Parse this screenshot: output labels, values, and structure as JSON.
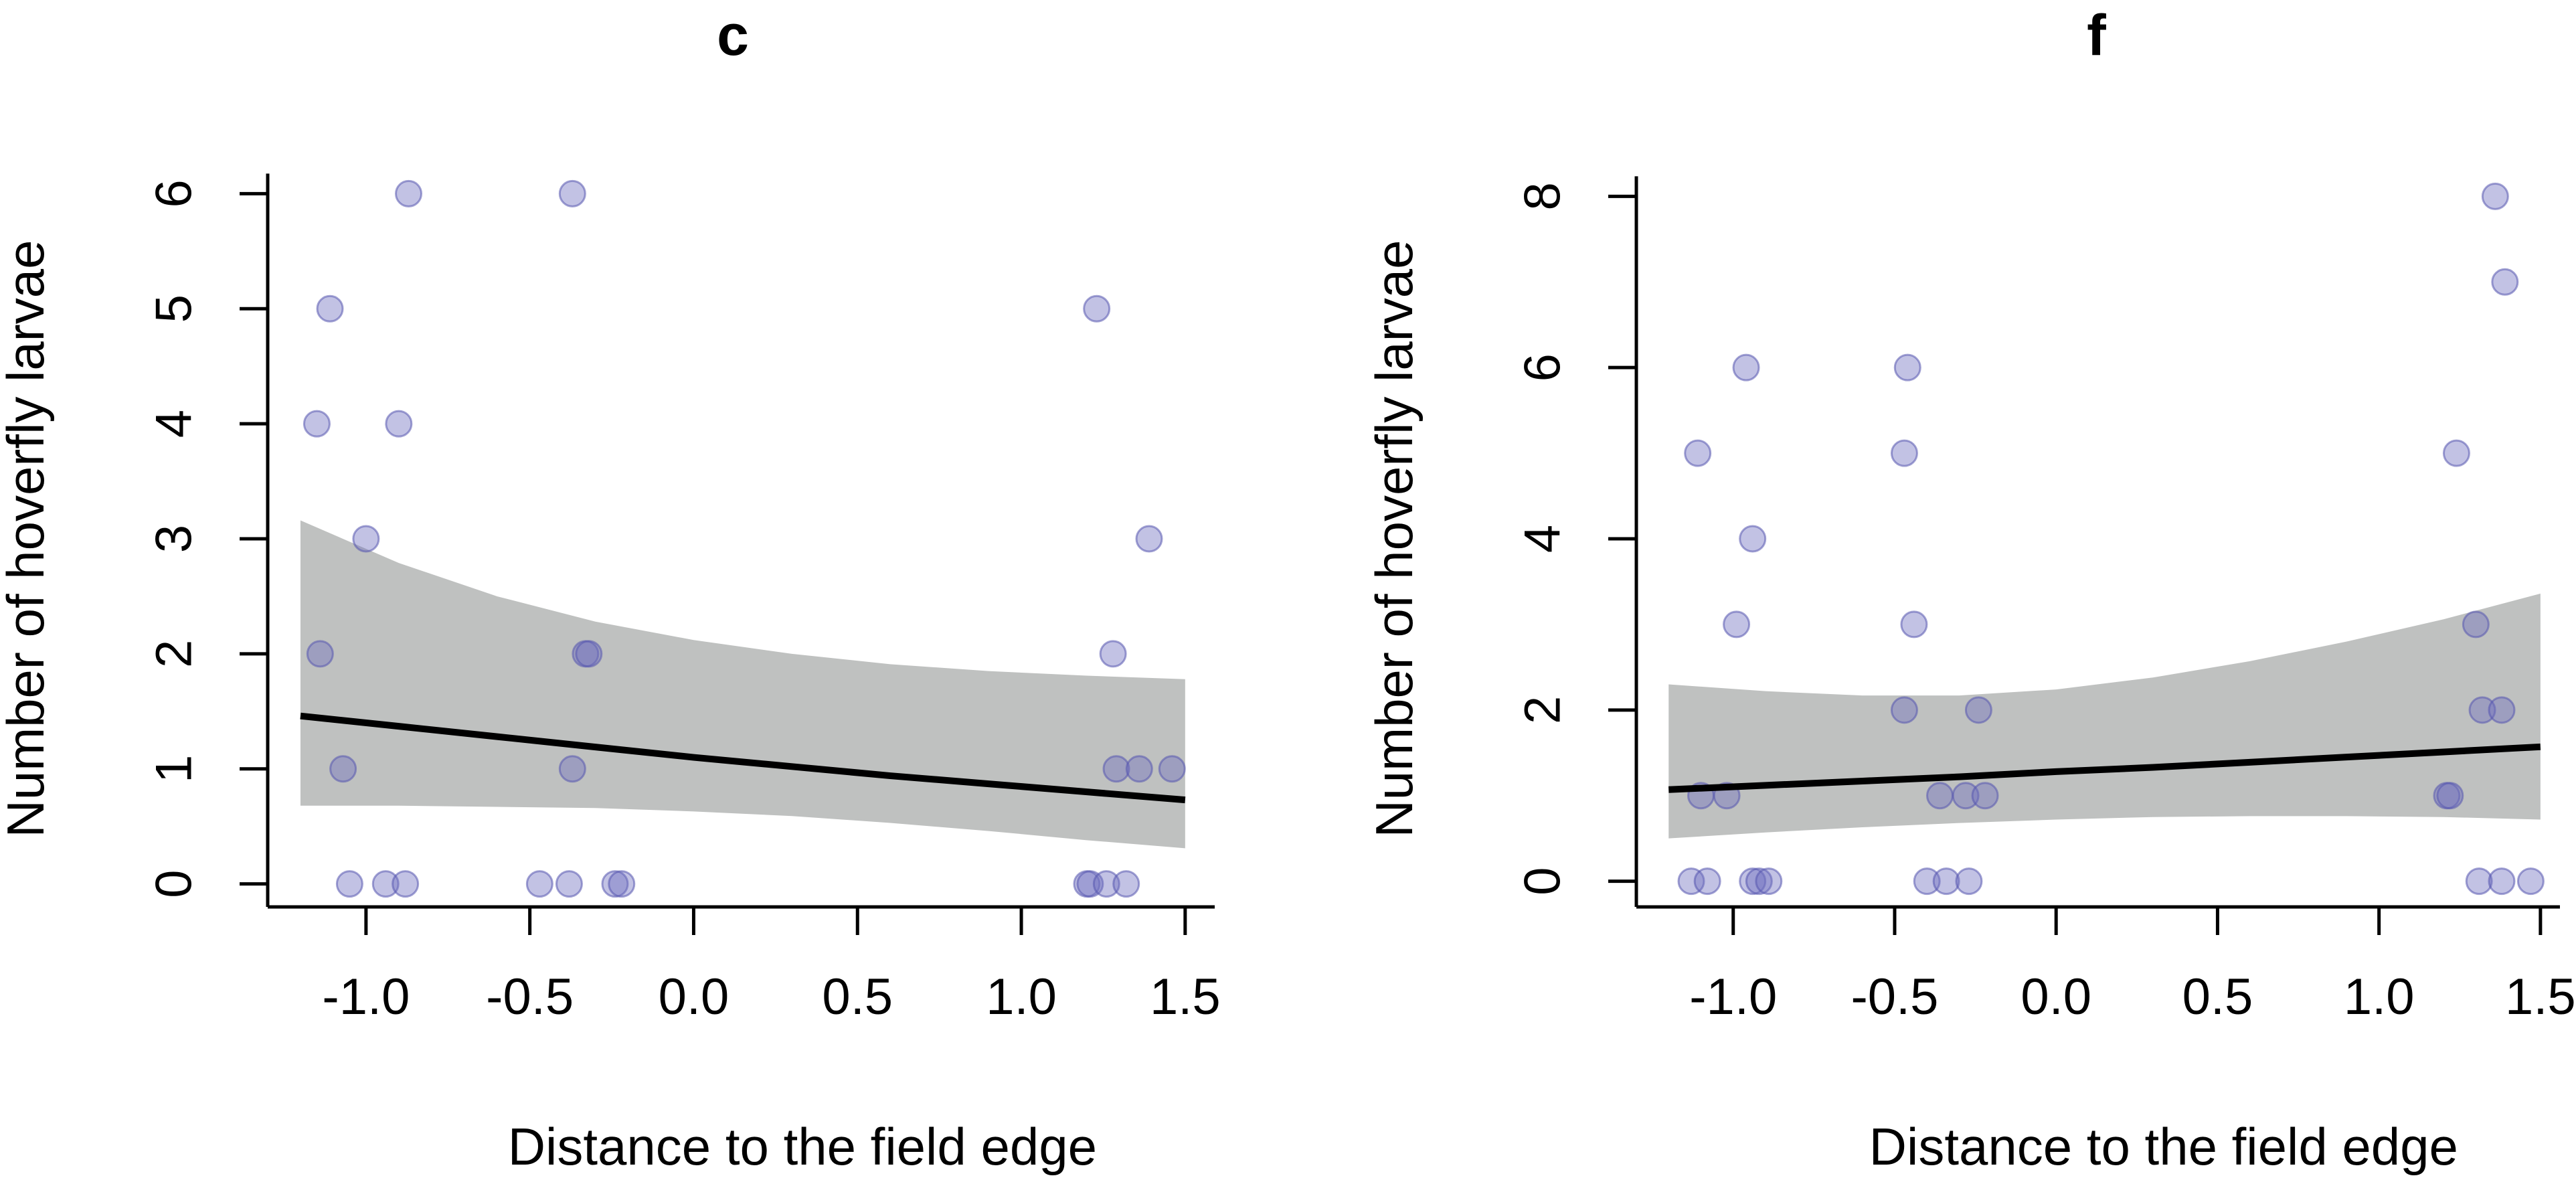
{
  "chart_data": [
    {
      "type": "scatter",
      "title": "c",
      "xlabel": "Distance to the field edge",
      "ylabel": "Number of hoverfly larvae",
      "xlim": [
        -1.3,
        1.58
      ],
      "ylim": [
        -0.2,
        6.2
      ],
      "xticks": [
        -1.0,
        -0.5,
        0.0,
        0.5,
        1.0,
        1.5
      ],
      "xtick_labels": [
        "-1.0",
        "-0.5",
        "0.0",
        "0.5",
        "1.0",
        "1.5"
      ],
      "yticks": [
        0,
        1,
        2,
        3,
        4,
        5,
        6
      ],
      "ytick_labels": [
        "0",
        "1",
        "2",
        "3",
        "4",
        "5",
        "6"
      ],
      "axis_x_range": [
        -1.3,
        1.58
      ],
      "axis_y_range": [
        0,
        6
      ],
      "points": [
        {
          "x": -1.15,
          "y": 4
        },
        {
          "x": -1.11,
          "y": 5
        },
        {
          "x": -1.14,
          "y": 2
        },
        {
          "x": -1.07,
          "y": 1
        },
        {
          "x": -1.0,
          "y": 3
        },
        {
          "x": -1.05,
          "y": 0
        },
        {
          "x": -0.94,
          "y": 0
        },
        {
          "x": -0.88,
          "y": 0
        },
        {
          "x": -0.9,
          "y": 4
        },
        {
          "x": -0.87,
          "y": 6
        },
        {
          "x": -0.47,
          "y": 0
        },
        {
          "x": -0.38,
          "y": 0
        },
        {
          "x": -0.37,
          "y": 1
        },
        {
          "x": -0.37,
          "y": 6
        },
        {
          "x": -0.33,
          "y": 2
        },
        {
          "x": -0.32,
          "y": 2
        },
        {
          "x": -0.24,
          "y": 0
        },
        {
          "x": -0.22,
          "y": 0
        },
        {
          "x": 1.2,
          "y": 0
        },
        {
          "x": 1.21,
          "y": 0
        },
        {
          "x": 1.23,
          "y": 5
        },
        {
          "x": 1.26,
          "y": 0
        },
        {
          "x": 1.32,
          "y": 0
        },
        {
          "x": 1.28,
          "y": 2
        },
        {
          "x": 1.29,
          "y": 1
        },
        {
          "x": 1.36,
          "y": 1
        },
        {
          "x": 1.39,
          "y": 3
        },
        {
          "x": 1.46,
          "y": 1
        }
      ],
      "fit": {
        "x": [
          -1.2,
          -0.9,
          -0.6,
          -0.3,
          0.0,
          0.3,
          0.6,
          0.9,
          1.2,
          1.5
        ],
        "y": [
          1.46,
          1.37,
          1.28,
          1.19,
          1.1,
          1.02,
          0.94,
          0.87,
          0.8,
          0.73
        ],
        "lower": [
          0.68,
          0.68,
          0.67,
          0.66,
          0.63,
          0.59,
          0.53,
          0.46,
          0.38,
          0.31
        ],
        "upper": [
          3.16,
          2.79,
          2.5,
          2.28,
          2.12,
          2.0,
          1.91,
          1.85,
          1.81,
          1.78
        ]
      }
    },
    {
      "type": "scatter",
      "title": "f",
      "xlabel": "Distance to the field edge",
      "ylabel": "Number of hoverfly larvae",
      "xlim": [
        -1.3,
        1.55
      ],
      "ylim": [
        -0.3,
        8.3
      ],
      "xticks": [
        -1.0,
        -0.5,
        0.0,
        0.5,
        1.0,
        1.5
      ],
      "xtick_labels": [
        "-1.0",
        "-0.5",
        "0.0",
        "0.5",
        "1.0",
        "1.5"
      ],
      "yticks": [
        0,
        2,
        4,
        6,
        8
      ],
      "ytick_labels": [
        "0",
        "2",
        "4",
        "6",
        "8"
      ],
      "axis_x_range": [
        -1.3,
        1.55
      ],
      "axis_y_range": [
        0,
        8
      ],
      "points": [
        {
          "x": -1.11,
          "y": 5
        },
        {
          "x": -1.1,
          "y": 1
        },
        {
          "x": -1.13,
          "y": 0
        },
        {
          "x": -1.08,
          "y": 0
        },
        {
          "x": -1.02,
          "y": 1
        },
        {
          "x": -0.99,
          "y": 3
        },
        {
          "x": -0.96,
          "y": 6
        },
        {
          "x": -0.94,
          "y": 4
        },
        {
          "x": -0.94,
          "y": 0
        },
        {
          "x": -0.92,
          "y": 0
        },
        {
          "x": -0.89,
          "y": 0
        },
        {
          "x": -0.47,
          "y": 5
        },
        {
          "x": -0.46,
          "y": 6
        },
        {
          "x": -0.47,
          "y": 2
        },
        {
          "x": -0.44,
          "y": 3
        },
        {
          "x": -0.4,
          "y": 0
        },
        {
          "x": -0.36,
          "y": 1
        },
        {
          "x": -0.34,
          "y": 0
        },
        {
          "x": -0.28,
          "y": 1
        },
        {
          "x": -0.27,
          "y": 0
        },
        {
          "x": -0.24,
          "y": 2
        },
        {
          "x": -0.22,
          "y": 1
        },
        {
          "x": 1.21,
          "y": 1
        },
        {
          "x": 1.22,
          "y": 1
        },
        {
          "x": 1.24,
          "y": 5
        },
        {
          "x": 1.3,
          "y": 3
        },
        {
          "x": 1.31,
          "y": 0
        },
        {
          "x": 1.32,
          "y": 2
        },
        {
          "x": 1.36,
          "y": 8
        },
        {
          "x": 1.38,
          "y": 2
        },
        {
          "x": 1.38,
          "y": 0
        },
        {
          "x": 1.39,
          "y": 7
        },
        {
          "x": 1.47,
          "y": 0
        }
      ],
      "fit": {
        "x": [
          -1.2,
          -0.9,
          -0.6,
          -0.3,
          0.0,
          0.3,
          0.6,
          0.9,
          1.2,
          1.5
        ],
        "y": [
          1.07,
          1.12,
          1.17,
          1.22,
          1.28,
          1.33,
          1.39,
          1.45,
          1.51,
          1.57
        ],
        "lower": [
          0.5,
          0.57,
          0.63,
          0.68,
          0.72,
          0.75,
          0.76,
          0.76,
          0.75,
          0.72
        ],
        "upper": [
          2.3,
          2.22,
          2.17,
          2.17,
          2.24,
          2.38,
          2.57,
          2.8,
          3.06,
          3.36
        ]
      }
    }
  ]
}
